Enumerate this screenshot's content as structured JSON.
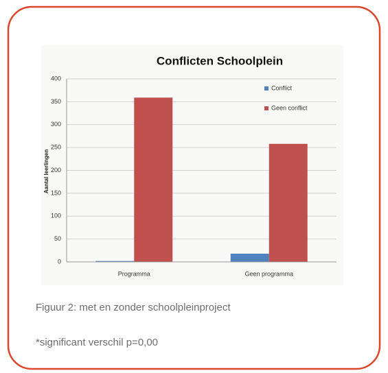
{
  "chart_data": {
    "type": "bar",
    "title": "Conflicten Schoolplein",
    "y_label": "Aantal leerlingen",
    "categories": [
      "Programma",
      "Geen programma"
    ],
    "series": [
      {
        "name": "Conflict",
        "color": "#4f81bd",
        "values": [
          2,
          18
        ]
      },
      {
        "name": "Geen conflict",
        "color": "#c0504d",
        "values": [
          359,
          258
        ]
      }
    ],
    "ylim": [
      0,
      400
    ],
    "yticks": [
      0,
      50,
      100,
      150,
      200,
      250,
      300,
      350,
      400
    ],
    "grid": true,
    "legend": "top-right",
    "caption": "Figuur 2: met en zonder schoolpleinproject",
    "note": "*significant verschil p=0,00"
  }
}
